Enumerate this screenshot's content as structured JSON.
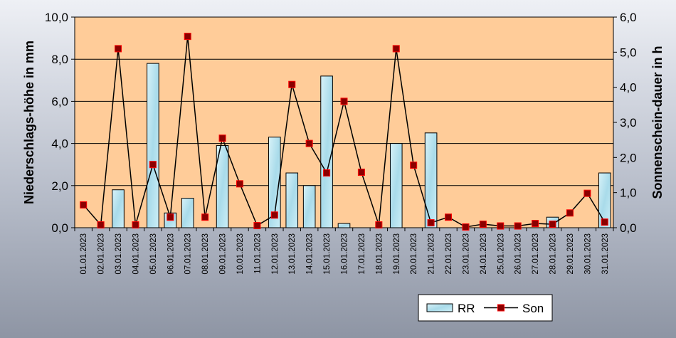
{
  "chart_data": {
    "type": "bar",
    "categories": [
      "01.01.2023",
      "02.01.2023",
      "03.01.2023",
      "04.01.2023",
      "05.01.2023",
      "06.01.2023",
      "07.01.2023",
      "08.01.2023",
      "09.01.2023",
      "10.01.2023",
      "11.01.2023",
      "12.01.2023",
      "13.01.2023",
      "14.01.2023",
      "15.01.2023",
      "16.01.2023",
      "17.01.2023",
      "18.01.2023",
      "19.01.2023",
      "20.01.2023",
      "21.01.2023",
      "22.01.2023",
      "23.01.2023",
      "24.01.2023",
      "25.01.2023",
      "26.01.2023",
      "27.01.2023",
      "28.01.2023",
      "29.01.2023",
      "30.01.2023",
      "31.01.2023"
    ],
    "series": [
      {
        "name": "RR",
        "type": "bar",
        "axis": "left",
        "values": [
          0,
          0,
          1.8,
          0,
          7.8,
          0.7,
          1.4,
          0,
          3.9,
          0,
          0,
          4.3,
          2.6,
          2.0,
          7.2,
          0.2,
          0,
          0,
          4.0,
          0,
          4.5,
          0,
          0,
          0,
          0,
          0,
          0,
          0.5,
          0,
          0,
          2.6
        ]
      },
      {
        "name": "Son",
        "type": "line",
        "axis": "right",
        "values": [
          0.65,
          0.08,
          5.1,
          0.08,
          1.8,
          0.3,
          5.45,
          0.3,
          2.55,
          1.25,
          0.06,
          0.36,
          4.08,
          2.4,
          1.56,
          3.6,
          1.58,
          0.08,
          5.1,
          1.78,
          0.14,
          0.3,
          0.02,
          0.1,
          0.05,
          0.05,
          0.12,
          0.1,
          0.42,
          0.98,
          0.16
        ]
      }
    ],
    "ylabel": "Niederschlags-höhe in mm",
    "y2label": "Sonnenschein-dauer in h",
    "ylim": [
      0,
      10
    ],
    "y2lim": [
      0,
      6
    ],
    "yticks": [
      "0,0",
      "2,0",
      "4,0",
      "6,0",
      "8,0",
      "10,0"
    ],
    "y2ticks": [
      "0,0",
      "1,0",
      "2,0",
      "3,0",
      "4,0",
      "5,0",
      "6,0"
    ],
    "grid": true,
    "legend_position": "bottom-right",
    "colors": {
      "plot_bg": "#ffcc99",
      "bar_fill": "#bfe6f0",
      "bar_stroke": "#000000",
      "line": "#000000",
      "marker_fill": "#8b0000",
      "marker_stroke": "#ff0000"
    }
  }
}
